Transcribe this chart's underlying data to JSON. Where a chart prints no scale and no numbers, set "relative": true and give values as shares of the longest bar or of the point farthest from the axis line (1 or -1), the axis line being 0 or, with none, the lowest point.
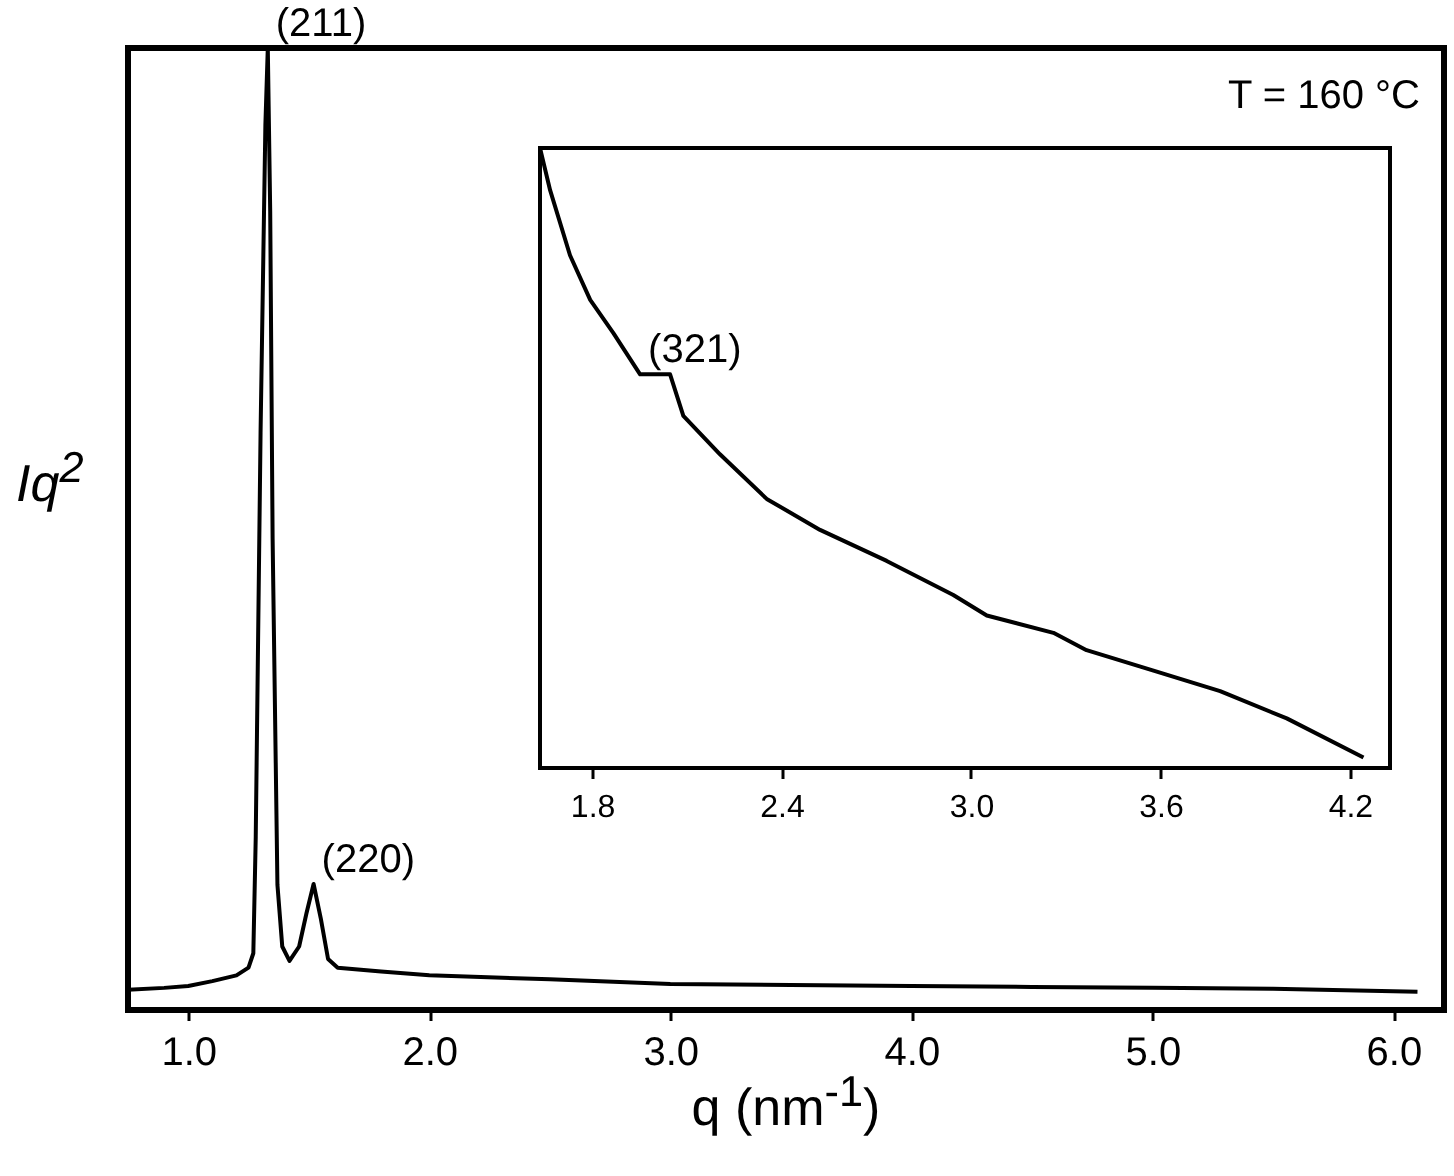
{
  "chart_data": [
    {
      "type": "line",
      "relative": true,
      "xlabel": "q (nm$^{-1}$)",
      "ylabel": "Iq$^{2}$",
      "xlim": [
        0.75,
        6.21
      ],
      "xticks": [
        {
          "value": 1,
          "label": "1.0"
        },
        {
          "value": 2,
          "label": "2.0"
        },
        {
          "value": 3,
          "label": "3.0"
        },
        {
          "value": 4,
          "label": "4.0"
        },
        {
          "value": 5,
          "label": "5.0"
        },
        {
          "value": 6,
          "label": "6.0"
        }
      ],
      "series": [
        {
          "color": "#000000",
          "x": [
            0.75,
            0.9,
            1.0,
            1.1,
            1.2,
            1.25,
            1.27,
            1.28,
            1.3,
            1.32,
            1.33,
            1.34,
            1.35,
            1.37,
            1.39,
            1.42,
            1.46,
            1.49,
            1.52,
            1.55,
            1.58,
            1.62,
            1.8,
            2.0,
            2.5,
            3.0,
            3.5,
            4.0,
            4.5,
            5.0,
            5.5,
            6.1
          ],
          "values": [
            0.021,
            0.023,
            0.025,
            0.03,
            0.036,
            0.044,
            0.059,
            0.18,
            0.6,
            0.92,
            1,
            0.83,
            0.49,
            0.13,
            0.066,
            0.051,
            0.066,
            0.1,
            0.131,
            0.095,
            0.053,
            0.044,
            0.04,
            0.036,
            0.032,
            0.027,
            0.026,
            0.025,
            0.024,
            0.023,
            0.022,
            0.019
          ]
        }
      ],
      "annotations": [
        {
          "text": "(211)",
          "x": 1.33,
          "y": 1
        },
        {
          "text": "(220)",
          "x": 1.52,
          "y": 0.131
        },
        "T = 160 °C"
      ]
    },
    {
      "type": "line",
      "relative": true,
      "xlim": [
        1.635,
        4.327
      ],
      "xticks": [
        1.8,
        2.4,
        {
          "value": 3,
          "label": "3.0"
        },
        3.6,
        4.2
      ],
      "series": [
        {
          "color": "#000000",
          "x": [
            1.635,
            1.667,
            1.73,
            1.794,
            1.868,
            1.952,
            2.047,
            2.089,
            2.205,
            2.353,
            2.522,
            2.733,
            2.944,
            3.05,
            3.261,
            3.366,
            3.578,
            3.789,
            4.0,
            4.243
          ],
          "values": [
            1,
            0.932,
            0.827,
            0.755,
            0.701,
            0.635,
            0.635,
            0.568,
            0.506,
            0.434,
            0.384,
            0.334,
            0.279,
            0.246,
            0.218,
            0.19,
            0.157,
            0.124,
            0.08,
            0.017
          ]
        }
      ],
      "annotations": [
        {
          "text": "(321)",
          "x": 1.952,
          "y": 0.635
        }
      ]
    }
  ]
}
